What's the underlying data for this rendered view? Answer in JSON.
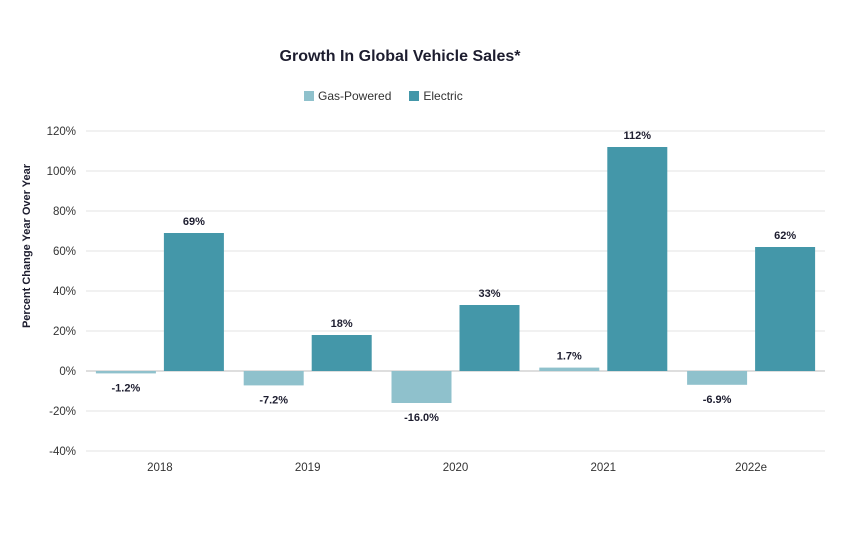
{
  "chart_data": {
    "type": "bar",
    "title": "Growth In Global Vehicle Sales*",
    "ylabel": "Percent Change Year Over Year",
    "xlabel": "",
    "categories": [
      "2018",
      "2019",
      "2020",
      "2021",
      "2022e"
    ],
    "series": [
      {
        "name": "Gas-Powered",
        "color": "#8fc1cc",
        "values": [
          -1.2,
          -7.2,
          -16.0,
          1.7,
          -6.9
        ],
        "labels": [
          "-1.2%",
          "-7.2%",
          "-16.0%",
          "1.7%",
          "-6.9%"
        ]
      },
      {
        "name": "Electric",
        "color": "#4497a9",
        "values": [
          69,
          18,
          33,
          112,
          62
        ],
        "labels": [
          "69%",
          "18%",
          "33%",
          "112%",
          "62%"
        ]
      }
    ],
    "ylim": [
      -40,
      120
    ],
    "yticks": [
      -40,
      -20,
      0,
      20,
      40,
      60,
      80,
      100,
      120
    ],
    "ytick_labels": [
      "-40%",
      "-20%",
      "0%",
      "20%",
      "40%",
      "60%",
      "80%",
      "100%",
      "120%"
    ],
    "grid": true,
    "legend_position": "top-center"
  }
}
